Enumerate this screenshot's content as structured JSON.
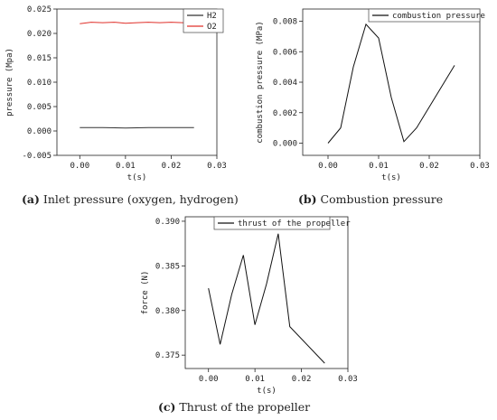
{
  "chart_data": [
    {
      "id": "a",
      "type": "line",
      "caption_letter": "(a)",
      "caption_text": " Inlet pressure (oxygen, hydrogen)",
      "xlabel": "t(s)",
      "ylabel": "pressure (Mpa)",
      "xlim": [
        -0.005,
        0.03
      ],
      "ylim": [
        -0.005,
        0.025
      ],
      "xticks": [
        0.0,
        0.01,
        0.02,
        0.03
      ],
      "xtick_labels": [
        "0.00",
        "0.01",
        "0.02",
        "0.03"
      ],
      "yticks": [
        -0.005,
        0.0,
        0.005,
        0.01,
        0.015,
        0.02,
        0.025
      ],
      "ytick_labels": [
        "-0.005",
        "0.000",
        "0.005",
        "0.010",
        "0.015",
        "0.020",
        "0.025"
      ],
      "legend_position": "top-right",
      "series": [
        {
          "name": "H2",
          "color": "#333333",
          "x": [
            0.0,
            0.005,
            0.01,
            0.015,
            0.02,
            0.025
          ],
          "y": [
            0.0007,
            0.0007,
            0.0006,
            0.0007,
            0.0007,
            0.0007
          ]
        },
        {
          "name": "O2",
          "color": "#e0302a",
          "x": [
            0.0,
            0.0025,
            0.005,
            0.0075,
            0.01,
            0.0125,
            0.015,
            0.0175,
            0.02,
            0.0225,
            0.025
          ],
          "y": [
            0.022,
            0.0223,
            0.0222,
            0.0223,
            0.0221,
            0.0222,
            0.0223,
            0.0222,
            0.0223,
            0.0222,
            0.0223
          ]
        }
      ]
    },
    {
      "id": "b",
      "type": "line",
      "caption_letter": "(b)",
      "caption_text": " Combustion pressure",
      "xlabel": "t(s)",
      "ylabel": "combustion pressure (MPa)",
      "xlim": [
        -0.005,
        0.03
      ],
      "ylim": [
        -0.0008,
        0.0088
      ],
      "xticks": [
        0.0,
        0.01,
        0.02,
        0.03
      ],
      "xtick_labels": [
        "0.00",
        "0.01",
        "0.02",
        "0.03"
      ],
      "yticks": [
        0.0,
        0.002,
        0.004,
        0.006,
        0.008
      ],
      "ytick_labels": [
        "0.000",
        "0.002",
        "0.004",
        "0.006",
        "0.008"
      ],
      "legend_position": "top-right",
      "series": [
        {
          "name": "combustion pressure",
          "color": "#111111",
          "x": [
            0.0,
            0.0025,
            0.005,
            0.0075,
            0.01,
            0.0125,
            0.015,
            0.0175,
            0.025
          ],
          "y": [
            0.0,
            0.001,
            0.005,
            0.0078,
            0.0069,
            0.003,
            0.0001,
            0.001,
            0.0051
          ]
        }
      ]
    },
    {
      "id": "c",
      "type": "line",
      "caption_letter": "(c)",
      "caption_text": " Thrust of the propeller",
      "xlabel": "t(s)",
      "ylabel": "force (N)",
      "xlim": [
        -0.005,
        0.03
      ],
      "ylim": [
        0.3735,
        0.3905
      ],
      "xticks": [
        0.0,
        0.01,
        0.02,
        0.03
      ],
      "xtick_labels": [
        "0.00",
        "0.01",
        "0.02",
        "0.03"
      ],
      "yticks": [
        0.375,
        0.38,
        0.385,
        0.39
      ],
      "ytick_labels": [
        "0.375",
        "0.380",
        "0.385",
        "0.390"
      ],
      "legend_position": "top-right",
      "series": [
        {
          "name": "thrust of the propeller",
          "color": "#111111",
          "x": [
            0.0,
            0.0025,
            0.005,
            0.0075,
            0.01,
            0.0125,
            0.015,
            0.0175,
            0.025
          ],
          "y": [
            0.3825,
            0.3762,
            0.3818,
            0.3862,
            0.3784,
            0.383,
            0.3886,
            0.3782,
            0.3741
          ]
        }
      ]
    }
  ]
}
